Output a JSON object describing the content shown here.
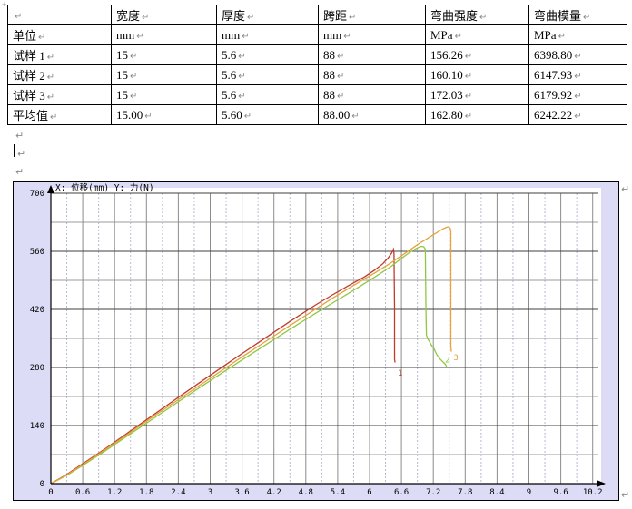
{
  "marks": {
    "pilcrow": "↵",
    "handle": "+"
  },
  "table": {
    "columns": [
      "",
      "宽度",
      "厚度",
      "跨距",
      "弯曲强度",
      "弯曲模量"
    ],
    "rows": [
      [
        "单位",
        "mm",
        "mm",
        "mm",
        "MPa",
        "MPa"
      ],
      [
        "试样 1",
        "15",
        "5.6",
        "88",
        "156.26",
        "6398.80"
      ],
      [
        "试样 2",
        "15",
        "5.6",
        "88",
        "160.10",
        "6147.93"
      ],
      [
        "试样 3",
        "15",
        "5.6",
        "88",
        "172.03",
        "6179.92"
      ],
      [
        "平均值",
        "15.00",
        "5.60",
        "88.00",
        "162.80",
        "6242.22"
      ]
    ]
  },
  "chart_data": {
    "type": "line",
    "title": "X: 位移(mm)  Y: 力(N)",
    "xlabel": "位移(mm)",
    "ylabel": "力(N)",
    "xlim": [
      0,
      10.2
    ],
    "ylim": [
      0,
      700
    ],
    "grid": true,
    "background": "#dcdcf6",
    "plot_background": "#ffffff",
    "x_minor_step": 0.3,
    "y_minor_step": 70,
    "x_ticks": [
      {
        "v": 0,
        "label": "0"
      },
      {
        "v": 0.6,
        "label": "0.6"
      },
      {
        "v": 1.2,
        "label": "1.2"
      },
      {
        "v": 1.8,
        "label": "1.8"
      },
      {
        "v": 2.4,
        "label": "2.4"
      },
      {
        "v": 3,
        "label": "3"
      },
      {
        "v": 3.6,
        "label": "3.6"
      },
      {
        "v": 4.2,
        "label": "4.2"
      },
      {
        "v": 4.8,
        "label": "4.8"
      },
      {
        "v": 5.4,
        "label": "5.4"
      },
      {
        "v": 6,
        "label": "6"
      },
      {
        "v": 6.6,
        "label": "6.6"
      },
      {
        "v": 7.2,
        "label": "7.2"
      },
      {
        "v": 7.8,
        "label": "7.8"
      },
      {
        "v": 8.4,
        "label": "8.4"
      },
      {
        "v": 9,
        "label": "9"
      },
      {
        "v": 9.6,
        "label": "9.6"
      },
      {
        "v": 10.2,
        "label": "10.2"
      }
    ],
    "y_ticks": [
      {
        "v": 0,
        "label": "0"
      },
      {
        "v": 140,
        "label": "140"
      },
      {
        "v": 280,
        "label": "280"
      },
      {
        "v": 420,
        "label": "420"
      },
      {
        "v": 560,
        "label": "560"
      },
      {
        "v": 700,
        "label": "700"
      }
    ],
    "series": [
      {
        "name": "1",
        "color": "#c0392b",
        "label_pos": [
          6.53,
          260
        ],
        "points": [
          [
            0,
            0
          ],
          [
            0.3,
            22
          ],
          [
            0.6,
            48
          ],
          [
            1,
            82
          ],
          [
            1.5,
            127
          ],
          [
            2,
            172
          ],
          [
            2.5,
            217
          ],
          [
            3,
            261
          ],
          [
            3.5,
            305
          ],
          [
            4,
            348
          ],
          [
            4.5,
            391
          ],
          [
            5,
            432
          ],
          [
            5.3,
            455
          ],
          [
            5.6,
            477
          ],
          [
            5.9,
            498
          ],
          [
            6.1,
            515
          ],
          [
            6.25,
            530
          ],
          [
            6.35,
            544
          ],
          [
            6.42,
            557
          ],
          [
            6.45,
            565
          ],
          [
            6.46,
            555
          ],
          [
            6.47,
            420
          ],
          [
            6.47,
            300
          ],
          [
            6.48,
            292
          ]
        ]
      },
      {
        "name": "2",
        "color": "#8fc742",
        "label_pos": [
          7.42,
          292
        ],
        "points": [
          [
            0,
            0
          ],
          [
            0.3,
            20
          ],
          [
            0.6,
            44
          ],
          [
            1,
            77
          ],
          [
            1.5,
            120
          ],
          [
            2,
            163
          ],
          [
            2.5,
            206
          ],
          [
            3,
            248
          ],
          [
            3.5,
            290
          ],
          [
            4,
            331
          ],
          [
            4.5,
            372
          ],
          [
            5,
            412
          ],
          [
            5.4,
            443
          ],
          [
            5.8,
            474
          ],
          [
            6.1,
            498
          ],
          [
            6.4,
            523
          ],
          [
            6.6,
            543
          ],
          [
            6.75,
            557
          ],
          [
            6.88,
            567
          ],
          [
            6.96,
            572
          ],
          [
            7.02,
            571
          ],
          [
            7.05,
            565
          ],
          [
            7.06,
            430
          ],
          [
            7.07,
            358
          ],
          [
            7.1,
            348
          ],
          [
            7.13,
            342
          ],
          [
            7.15,
            337
          ],
          [
            7.18,
            330
          ],
          [
            7.21,
            326
          ],
          [
            7.24,
            318
          ],
          [
            7.27,
            310
          ],
          [
            7.3,
            305
          ],
          [
            7.33,
            300
          ],
          [
            7.36,
            296
          ],
          [
            7.4,
            291
          ],
          [
            7.43,
            287
          ],
          [
            7.45,
            282
          ]
        ]
      },
      {
        "name": "3",
        "color": "#e6a23c",
        "label_pos": [
          7.58,
          298
        ],
        "points": [
          [
            0,
            0
          ],
          [
            0.3,
            21
          ],
          [
            0.6,
            46
          ],
          [
            1,
            80
          ],
          [
            1.5,
            124
          ],
          [
            2,
            168
          ],
          [
            2.5,
            211
          ],
          [
            3,
            254
          ],
          [
            3.5,
            297
          ],
          [
            4,
            339
          ],
          [
            4.5,
            381
          ],
          [
            5,
            422
          ],
          [
            5.3,
            447
          ],
          [
            5.6,
            470
          ],
          [
            5.9,
            493
          ],
          [
            6.1,
            508
          ],
          [
            6.4,
            532
          ],
          [
            6.7,
            558
          ],
          [
            6.9,
            576
          ],
          [
            7.1,
            592
          ],
          [
            7.25,
            604
          ],
          [
            7.38,
            614
          ],
          [
            7.45,
            618
          ],
          [
            7.49,
            619
          ],
          [
            7.52,
            615
          ],
          [
            7.53,
            608
          ],
          [
            7.53,
            430
          ],
          [
            7.53,
            330
          ],
          [
            7.54,
            318
          ]
        ]
      }
    ]
  }
}
